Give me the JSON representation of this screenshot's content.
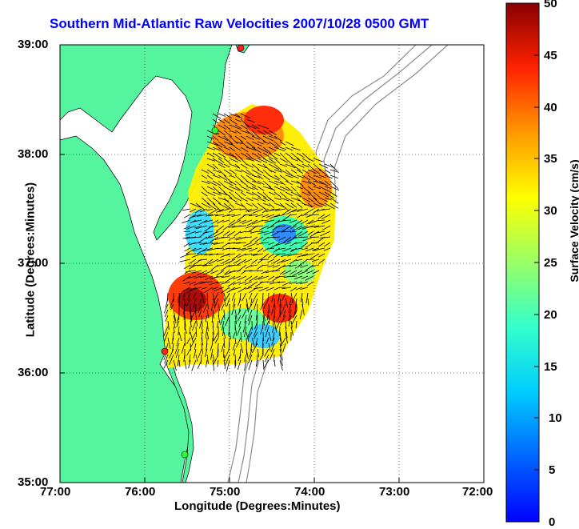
{
  "title": "Southern Mid-Atlantic Raw Velocities 2007/10/28 0500 GMT",
  "xlabel": "Longitude (Degrees:Minutes)",
  "ylabel": "Latitude (Degrees:Minutes)",
  "colorbar_label": "Surface Velocity (cm/s)",
  "x_ticks": [
    "77:00",
    "76:00",
    "75:00",
    "74:00",
    "73:00",
    "72:00"
  ],
  "y_ticks": [
    "39:00",
    "38:00",
    "37:00",
    "36:00",
    "35:00"
  ],
  "colorbar_ticks": [
    "50",
    "45",
    "40",
    "35",
    "30",
    "25",
    "20",
    "15",
    "10",
    "5",
    "0"
  ],
  "colors": {
    "title": "#0000ff",
    "land": "#55f5a0",
    "water": "#ffffff",
    "bathymetry": "#8c8c8c",
    "grid": "#000000"
  },
  "chart_data": {
    "type": "heatmap",
    "title": "Southern Mid-Atlantic Raw Velocities 2007/10/28 0500 GMT",
    "xlabel": "Longitude (Degrees:Minutes)",
    "ylabel": "Latitude (Degrees:Minutes)",
    "xlim": [
      -77.0,
      -72.0
    ],
    "ylim": [
      35.0,
      39.0
    ],
    "grid": true,
    "colorbar": {
      "label": "Surface Velocity (cm/s)",
      "range": [
        0,
        50
      ],
      "colormap": "jet"
    },
    "site_markers": [
      {
        "lon": -74.85,
        "lat": 38.97,
        "color": "red"
      },
      {
        "lon": -75.15,
        "lat": 38.22,
        "color": "green"
      },
      {
        "lon": -75.73,
        "lat": 36.19,
        "color": "red"
      },
      {
        "lon": -75.52,
        "lat": 35.25,
        "color": "green"
      }
    ]
  }
}
